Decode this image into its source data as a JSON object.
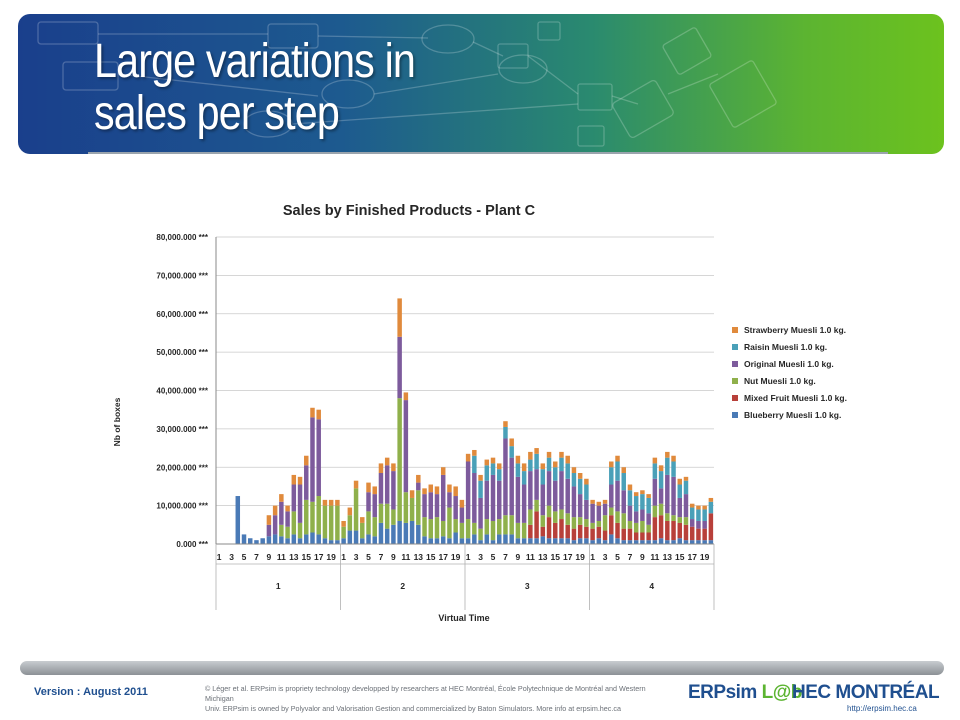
{
  "slide": {
    "title_line1": "Large variations in",
    "title_line2": "sales per step"
  },
  "footer": {
    "version": "Version : August 2011",
    "copyright_line1": "© Léger et al. ERPsim is propriety technology developped by researchers at HEC Montréal, École Polytechnique de Montréal and Western Michigan",
    "copyright_line2": "Univ. ERPsim is owned by Polyvalor and Valorisation Gestion and commercialized by Baton Simulators. More info at erpsim.hec.ca",
    "logo_erpsim_a": "ERPsim",
    "logo_erpsim_b": "L@b",
    "logo_hec": "HEC MONTRÉAL",
    "url": "http://erpsim.hec.ca"
  },
  "chart_data": {
    "type": "bar",
    "stacked": true,
    "title": "Sales by Finished Products - Plant C",
    "xlabel": "Virtual Time",
    "ylabel": "Nb of boxes",
    "ylim": [
      0,
      80000
    ],
    "yticks": [
      0,
      10000,
      20000,
      30000,
      40000,
      50000,
      60000,
      70000,
      80000
    ],
    "ytick_labels": [
      "0.000 ***",
      "10,000.000 ***",
      "20,000.000 ***",
      "30,000.000 ***",
      "40,000.000 ***",
      "50,000.000 ***",
      "60,000.000 ***",
      "70,000.000 ***",
      "80,000.000 ***"
    ],
    "grid": true,
    "legend_position": "right",
    "rounds": [
      "1",
      "2",
      "3",
      "4"
    ],
    "steps_per_round": 20,
    "step_tick_labels": [
      "1",
      "3",
      "5",
      "7",
      "9",
      "11",
      "13",
      "15",
      "17",
      "19"
    ],
    "series": [
      {
        "name": "Blueberry Muesli 1.0 kg.",
        "color": "#4a7ab6",
        "values": [
          0,
          0,
          0,
          12500,
          2500,
          1500,
          1000,
          1500,
          2000,
          2500,
          2000,
          1500,
          2500,
          1500,
          2500,
          3000,
          2500,
          1500,
          1000,
          1000,
          1500,
          3500,
          3500,
          1500,
          2500,
          2000,
          5500,
          4000,
          5000,
          6000,
          5500,
          6000,
          5000,
          2000,
          1500,
          1500,
          2000,
          1500,
          3000,
          1500,
          1500,
          2500,
          1000,
          2500,
          1000,
          2500,
          2500,
          2500,
          1500,
          1500,
          1500,
          1500,
          2000,
          1500,
          1500,
          1500,
          1500,
          1000,
          1500,
          1500,
          1000,
          1500,
          1000,
          2500,
          1500,
          1000,
          1000,
          1000,
          1000,
          1000,
          1000,
          1500,
          1000,
          1000,
          1500,
          1000,
          1000,
          1000,
          1000,
          1000
        ]
      },
      {
        "name": "Mixed Fruit Muesli 1.0 kg.",
        "color": "#b8403a",
        "values": [
          0,
          0,
          0,
          0,
          0,
          0,
          0,
          0,
          0,
          0,
          0,
          0,
          0,
          0,
          0,
          0,
          0,
          0,
          0,
          0,
          0,
          0,
          0,
          0,
          0,
          0,
          0,
          0,
          0,
          0,
          0,
          0,
          0,
          0,
          0,
          0,
          0,
          0,
          0,
          0,
          0,
          0,
          0,
          0,
          0,
          0,
          0,
          0,
          0,
          0,
          3500,
          7000,
          2500,
          5500,
          4000,
          5000,
          3500,
          3000,
          3500,
          3000,
          3000,
          3000,
          2500,
          5000,
          4000,
          3000,
          3000,
          2000,
          2000,
          2000,
          6000,
          6000,
          5000,
          5000,
          4000,
          4000,
          3500,
          3000,
          3000,
          7000
        ]
      },
      {
        "name": "Nut Muesli 1.0 kg.",
        "color": "#8fb04b",
        "values": [
          0,
          0,
          0,
          0,
          0,
          0,
          0,
          0,
          0,
          0,
          3000,
          3000,
          6000,
          4000,
          9000,
          8000,
          10000,
          8500,
          9000,
          9000,
          3000,
          4000,
          11000,
          4000,
          6000,
          5000,
          5000,
          6500,
          4000,
          32000,
          8000,
          6000,
          9000,
          5000,
          5000,
          5500,
          4000,
          8000,
          3500,
          4000,
          5000,
          3000,
          3000,
          4000,
          5000,
          4000,
          5000,
          5000,
          4000,
          4000,
          4000,
          3000,
          3000,
          3000,
          3000,
          2500,
          3000,
          3000,
          2000,
          2000,
          1500,
          1500,
          4000,
          2000,
          3000,
          4000,
          2000,
          2500,
          3000,
          2000,
          3000,
          3000,
          2000,
          1500,
          1500,
          2000,
          0,
          0,
          0,
          0
        ]
      },
      {
        "name": "Original Muesli 1.0 kg.",
        "color": "#7d5b9c",
        "values": [
          0,
          0,
          0,
          0,
          0,
          0,
          0,
          0,
          3000,
          5000,
          6000,
          4000,
          7000,
          10000,
          9000,
          22000,
          20000,
          0,
          0,
          0,
          0,
          0,
          0,
          0,
          5000,
          6000,
          8000,
          10000,
          10000,
          16000,
          24000,
          0,
          2000,
          6000,
          7000,
          6000,
          12000,
          4000,
          6000,
          4000,
          15000,
          13000,
          8000,
          10000,
          12000,
          10000,
          20000,
          15000,
          12000,
          10000,
          10000,
          8000,
          8000,
          9000,
          8000,
          10000,
          9000,
          8000,
          6000,
          5000,
          5000,
          4000,
          3000,
          6000,
          8000,
          6000,
          4000,
          3000,
          3000,
          3000,
          7000,
          4000,
          10000,
          10000,
          5000,
          6000,
          2000,
          2000,
          2000,
          0
        ]
      },
      {
        "name": "Raisin Muesli 1.0 kg.",
        "color": "#4aa0b8",
        "values": [
          0,
          0,
          0,
          0,
          0,
          0,
          0,
          0,
          0,
          0,
          0,
          0,
          0,
          0,
          0,
          0,
          0,
          0,
          0,
          0,
          0,
          0,
          0,
          0,
          0,
          0,
          0,
          0,
          0,
          0,
          0,
          0,
          0,
          0,
          0,
          0,
          0,
          0,
          0,
          0,
          0,
          4500,
          4500,
          4000,
          3000,
          3000,
          3000,
          3000,
          3500,
          3500,
          3000,
          4000,
          4000,
          3500,
          3500,
          3500,
          4000,
          3500,
          4000,
          4000,
          0,
          0,
          0,
          4500,
          5000,
          4500,
          4000,
          4000,
          4000,
          4000,
          4000,
          4500,
          4500,
          4000,
          3500,
          3500,
          3000,
          3000,
          3000,
          3000
        ]
      },
      {
        "name": "Strawberry Muesli 1.0 kg.",
        "color": "#e08a3c",
        "values": [
          0,
          0,
          0,
          0,
          0,
          0,
          0,
          0,
          2500,
          2500,
          2000,
          1500,
          2500,
          2000,
          2500,
          2500,
          2500,
          1500,
          1500,
          1500,
          1500,
          2000,
          2000,
          1500,
          2500,
          2000,
          2500,
          2000,
          2000,
          10000,
          2000,
          2000,
          2000,
          1500,
          2000,
          2000,
          2000,
          2000,
          2500,
          2000,
          2000,
          1500,
          1500,
          1500,
          1500,
          1500,
          1500,
          2000,
          2000,
          2000,
          2000,
          1500,
          1500,
          1500,
          1500,
          1500,
          2000,
          1500,
          1500,
          1500,
          1000,
          1000,
          1000,
          1500,
          1500,
          1500,
          1500,
          1000,
          1000,
          1000,
          1500,
          1500,
          1500,
          1500,
          1500,
          1000,
          1000,
          1000,
          1000,
          1000
        ]
      }
    ]
  }
}
